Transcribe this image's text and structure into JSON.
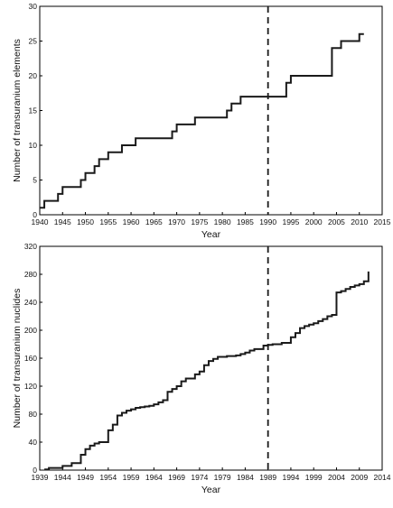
{
  "chart_data": [
    {
      "type": "line",
      "step": true,
      "xlabel": "Year",
      "ylabel": "Number of transuranium elements",
      "xlim": [
        1940,
        2015
      ],
      "ylim": [
        0,
        30
      ],
      "xticks": [
        1940,
        1945,
        1950,
        1955,
        1960,
        1965,
        1970,
        1975,
        1980,
        1985,
        1990,
        1995,
        2000,
        2005,
        2010,
        2015
      ],
      "yticks": [
        0,
        5,
        10,
        15,
        20,
        25,
        30
      ],
      "vline": 1990,
      "series": [
        {
          "x": [
            1940,
            1941,
            1944,
            1945,
            1949,
            1950,
            1952,
            1953,
            1955,
            1958,
            1961,
            1969,
            1970,
            1974,
            1981,
            1982,
            1984,
            1994,
            1995,
            2004,
            2006,
            2010,
            2011
          ],
          "y": [
            1,
            2,
            3,
            4,
            5,
            6,
            7,
            8,
            9,
            10,
            11,
            12,
            13,
            14,
            15,
            16,
            17,
            19,
            20,
            24,
            25,
            26,
            26
          ]
        }
      ]
    },
    {
      "type": "line",
      "step": true,
      "xlabel": "Year",
      "ylabel": "Number of transuranium nuclides",
      "xlim": [
        1939,
        2014
      ],
      "ylim": [
        0,
        320
      ],
      "xticks": [
        1939,
        1944,
        1949,
        1954,
        1959,
        1964,
        1969,
        1974,
        1979,
        1984,
        1989,
        1994,
        1999,
        2004,
        2009,
        2014
      ],
      "yticks": [
        0,
        40,
        80,
        120,
        160,
        200,
        240,
        280,
        320
      ],
      "vline": 1989,
      "series": [
        {
          "x": [
            1940,
            1941,
            1944,
            1946,
            1948,
            1949,
            1950,
            1951,
            1952,
            1954,
            1955,
            1956,
            1957,
            1958,
            1959,
            1960,
            1961,
            1962,
            1963,
            1964,
            1965,
            1966,
            1967,
            1968,
            1969,
            1970,
            1971,
            1973,
            1974,
            1975,
            1976,
            1977,
            1978,
            1980,
            1982,
            1983,
            1984,
            1985,
            1986,
            1988,
            1989,
            1990,
            1992,
            1994,
            1995,
            1996,
            1997,
            1998,
            1999,
            2000,
            2001,
            2002,
            2003,
            2004,
            2005,
            2006,
            2007,
            2008,
            2009,
            2010,
            2011
          ],
          "y": [
            1,
            3,
            6,
            10,
            22,
            30,
            35,
            38,
            40,
            57,
            65,
            78,
            82,
            85,
            87,
            89,
            90,
            91,
            92,
            94,
            97,
            100,
            112,
            116,
            120,
            127,
            131,
            137,
            141,
            150,
            156,
            159,
            162,
            163,
            164,
            166,
            168,
            171,
            173,
            178,
            179,
            180,
            182,
            190,
            196,
            203,
            206,
            208,
            210,
            213,
            216,
            220,
            222,
            254,
            256,
            259,
            262,
            264,
            266,
            270,
            284
          ]
        }
      ]
    }
  ]
}
